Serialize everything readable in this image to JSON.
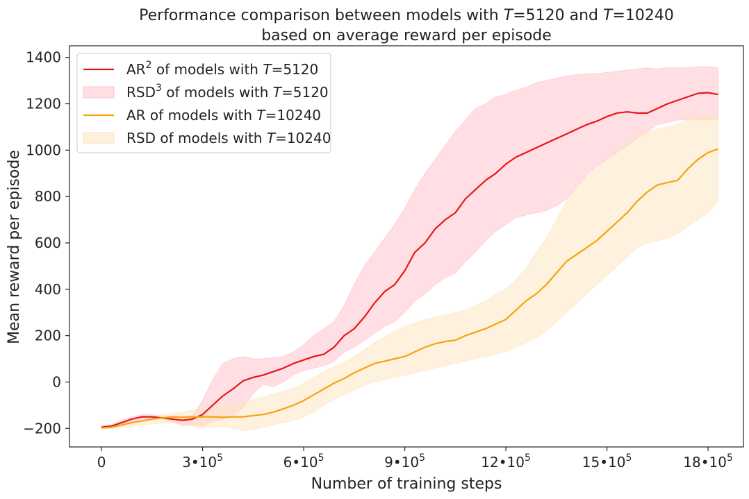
{
  "chart_data": {
    "type": "line",
    "title": {
      "line1_prefix": "Performance comparison between models with ",
      "line1_mid": " and ",
      "line1_t1": "=5120",
      "line1_t2": "=10240",
      "line1_var": "T",
      "line2": "based on average reward per episode"
    },
    "xlabel": "Number of training steps",
    "ylabel": "Mean reward per episode",
    "xlim": [
      -95000,
      1905000
    ],
    "ylim": [
      -280,
      1450
    ],
    "grid": false,
    "legend_position": "top-left",
    "x_ticks": [
      {
        "value": 0,
        "label": "0",
        "sup": ""
      },
      {
        "value": 300000,
        "label": "3•10",
        "sup": "5"
      },
      {
        "value": 600000,
        "label": "6•10",
        "sup": "5"
      },
      {
        "value": 900000,
        "label": "9•10",
        "sup": "5"
      },
      {
        "value": 1200000,
        "label": "12•10",
        "sup": "5"
      },
      {
        "value": 1500000,
        "label": "15•10",
        "sup": "5"
      },
      {
        "value": 1800000,
        "label": "18•10",
        "sup": "5"
      }
    ],
    "y_ticks": [
      {
        "value": -200,
        "label": "−200"
      },
      {
        "value": 0,
        "label": "0"
      },
      {
        "value": 200,
        "label": "200"
      },
      {
        "value": 400,
        "label": "400"
      },
      {
        "value": 600,
        "label": "600"
      },
      {
        "value": 800,
        "label": "800"
      },
      {
        "value": 1000,
        "label": "1000"
      },
      {
        "value": 1200,
        "label": "1200"
      },
      {
        "value": 1400,
        "label": "1400"
      }
    ],
    "legend": [
      {
        "kind": "line",
        "color": "#e8141b",
        "pre": "AR",
        "sup": "2",
        "mid": " of models with ",
        "var": "T",
        "post": "=5120"
      },
      {
        "kind": "band",
        "color": "#ffc0c8",
        "pre": "RSD",
        "sup": "3",
        "mid": " of models with ",
        "var": "T",
        "post": "=5120"
      },
      {
        "kind": "line",
        "color": "#f7a30e",
        "pre": "AR",
        "sup": "",
        "mid": " of models with ",
        "var": "T",
        "post": "=10240"
      },
      {
        "kind": "band",
        "color": "#fde4bd",
        "pre": "RSD",
        "sup": "",
        "mid": " of models with ",
        "var": "T",
        "post": "=10240"
      }
    ],
    "series": [
      {
        "name": "AR of models with T=5120",
        "color": "#e8141b",
        "band_color": "#ffc0c8",
        "x": [
          0,
          30000,
          60000,
          90000,
          120000,
          150000,
          180000,
          210000,
          240000,
          270000,
          300000,
          330000,
          360000,
          390000,
          420000,
          450000,
          480000,
          510000,
          540000,
          570000,
          600000,
          630000,
          660000,
          690000,
          720000,
          750000,
          780000,
          810000,
          840000,
          870000,
          900000,
          930000,
          960000,
          990000,
          1020000,
          1050000,
          1080000,
          1110000,
          1140000,
          1170000,
          1200000,
          1230000,
          1260000,
          1290000,
          1320000,
          1350000,
          1380000,
          1410000,
          1440000,
          1470000,
          1500000,
          1530000,
          1560000,
          1590000,
          1620000,
          1650000,
          1680000,
          1710000,
          1740000,
          1770000,
          1800000,
          1830000
        ],
        "y": [
          -195,
          -190,
          -175,
          -160,
          -150,
          -150,
          -155,
          -160,
          -165,
          -160,
          -140,
          -100,
          -60,
          -30,
          5,
          20,
          30,
          45,
          60,
          80,
          95,
          110,
          120,
          150,
          200,
          230,
          280,
          340,
          390,
          420,
          480,
          560,
          600,
          660,
          700,
          730,
          790,
          830,
          870,
          900,
          940,
          970,
          990,
          1010,
          1030,
          1050,
          1070,
          1090,
          1110,
          1125,
          1145,
          1160,
          1165,
          1160,
          1160,
          1180,
          1200,
          1215,
          1230,
          1245,
          1248,
          1240
        ],
        "y_upper": [
          -190,
          -185,
          -165,
          -150,
          -140,
          -140,
          -150,
          -150,
          -150,
          -145,
          -80,
          10,
          80,
          100,
          110,
          100,
          100,
          105,
          110,
          130,
          160,
          200,
          230,
          260,
          330,
          420,
          500,
          560,
          620,
          680,
          750,
          830,
          900,
          960,
          1020,
          1080,
          1130,
          1180,
          1200,
          1230,
          1240,
          1260,
          1270,
          1290,
          1300,
          1310,
          1320,
          1325,
          1330,
          1330,
          1335,
          1340,
          1345,
          1350,
          1355,
          1350,
          1355,
          1355,
          1355,
          1360,
          1360,
          1355
        ],
        "y_lower": [
          -200,
          -195,
          -185,
          -170,
          -160,
          -160,
          -160,
          -170,
          -190,
          -185,
          -190,
          -170,
          -160,
          -150,
          -110,
          -50,
          -10,
          -20,
          0,
          30,
          50,
          60,
          70,
          90,
          130,
          150,
          180,
          210,
          240,
          260,
          300,
          350,
          380,
          420,
          450,
          470,
          520,
          560,
          610,
          650,
          680,
          710,
          720,
          730,
          740,
          760,
          790,
          840,
          890,
          930,
          960,
          990,
          1020,
          1050,
          1080,
          1110,
          1120,
          1130,
          1130,
          1130,
          1130,
          1130
        ]
      },
      {
        "name": "AR of models with T=10240",
        "color": "#f7a30e",
        "band_color": "#fde4bd",
        "x": [
          0,
          30000,
          60000,
          90000,
          120000,
          150000,
          180000,
          210000,
          240000,
          270000,
          300000,
          330000,
          360000,
          390000,
          420000,
          450000,
          480000,
          510000,
          540000,
          570000,
          600000,
          630000,
          660000,
          690000,
          720000,
          750000,
          780000,
          810000,
          840000,
          870000,
          900000,
          930000,
          960000,
          990000,
          1020000,
          1050000,
          1080000,
          1110000,
          1140000,
          1170000,
          1200000,
          1230000,
          1260000,
          1290000,
          1320000,
          1350000,
          1380000,
          1410000,
          1440000,
          1470000,
          1500000,
          1530000,
          1560000,
          1590000,
          1620000,
          1650000,
          1680000,
          1710000,
          1740000,
          1770000,
          1800000,
          1830000
        ],
        "y": [
          -198,
          -195,
          -185,
          -175,
          -168,
          -160,
          -155,
          -150,
          -152,
          -150,
          -150,
          -150,
          -152,
          -150,
          -150,
          -145,
          -140,
          -130,
          -115,
          -100,
          -80,
          -55,
          -30,
          -5,
          15,
          40,
          60,
          80,
          90,
          100,
          110,
          130,
          150,
          165,
          175,
          180,
          200,
          215,
          230,
          250,
          270,
          310,
          350,
          380,
          420,
          470,
          520,
          550,
          580,
          610,
          650,
          690,
          730,
          780,
          820,
          850,
          860,
          870,
          920,
          960,
          990,
          1005
        ],
        "y_upper": [
          -195,
          -190,
          -180,
          -170,
          -160,
          -150,
          -140,
          -135,
          -130,
          -120,
          -115,
          -110,
          -100,
          -95,
          -85,
          -75,
          -65,
          -50,
          -40,
          -25,
          -5,
          20,
          45,
          65,
          85,
          110,
          140,
          170,
          195,
          220,
          240,
          255,
          270,
          280,
          290,
          300,
          310,
          330,
          350,
          380,
          400,
          440,
          490,
          560,
          620,
          700,
          780,
          840,
          880,
          920,
          960,
          1000,
          1030,
          1060,
          1080,
          1090,
          1100,
          1110,
          1130,
          1150,
          1150,
          1150
        ],
        "y_lower": [
          -200,
          -200,
          -195,
          -190,
          -185,
          -180,
          -178,
          -175,
          -180,
          -190,
          -200,
          -195,
          -190,
          -200,
          -210,
          -205,
          -195,
          -185,
          -175,
          -165,
          -150,
          -130,
          -100,
          -75,
          -55,
          -35,
          -15,
          0,
          10,
          20,
          30,
          40,
          50,
          60,
          70,
          80,
          90,
          100,
          110,
          120,
          130,
          150,
          170,
          190,
          220,
          260,
          300,
          340,
          380,
          420,
          460,
          500,
          540,
          580,
          600,
          610,
          620,
          640,
          670,
          700,
          730,
          780
        ]
      }
    ]
  }
}
